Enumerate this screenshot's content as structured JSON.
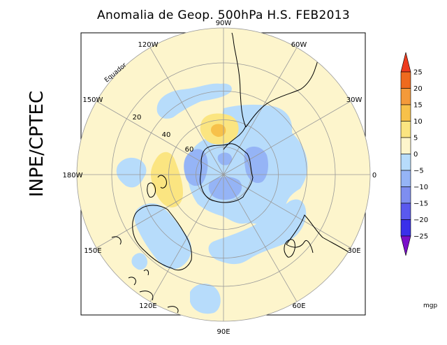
{
  "title": "Anomalia de Geop. 500hPa H.S. FEB2013",
  "organization": "INPE/CPTEC",
  "map": {
    "projection": "polar stereographic, South Pole",
    "longitude_labels": [
      {
        "lon": 90,
        "text": "90W"
      },
      {
        "lon": 120,
        "text": "120W"
      },
      {
        "lon": 60,
        "text": "60W"
      },
      {
        "lon": 30,
        "text": "30W"
      },
      {
        "lon": 150,
        "text": "150W"
      },
      {
        "lon": 180,
        "text": "180W"
      },
      {
        "lon": 0,
        "text": "0"
      },
      {
        "lon": 210,
        "text": "150E"
      },
      {
        "lon": 330,
        "text": "30E"
      },
      {
        "lon": 240,
        "text": "120E"
      },
      {
        "lon": 270,
        "text": "90E"
      },
      {
        "lon": 300,
        "text": "60E"
      }
    ],
    "latitude_labels": [
      "20",
      "40",
      "60"
    ],
    "equator_label": "Equador",
    "background_color": "#fdf5cc",
    "grid_color": "#999999",
    "coast_color": "#000000"
  },
  "colorbar": {
    "unit": "mgp",
    "ticks": [
      "25",
      "20",
      "15",
      "10",
      "5",
      "0",
      "−5",
      "−10",
      "−15",
      "−20",
      "−25"
    ],
    "colors": [
      "#c0401a",
      "#ef6a1e",
      "#f49a3a",
      "#f7c14a",
      "#fbe581",
      "#fdf5cc",
      "#b7dcfb",
      "#95b4f6",
      "#7e8ef0",
      "#5a59ee",
      "#3a30ea",
      "#3b1fd3"
    ],
    "top_arrow_color": "#ee3b1e",
    "bottom_arrow_color": "#7a0fc9"
  }
}
